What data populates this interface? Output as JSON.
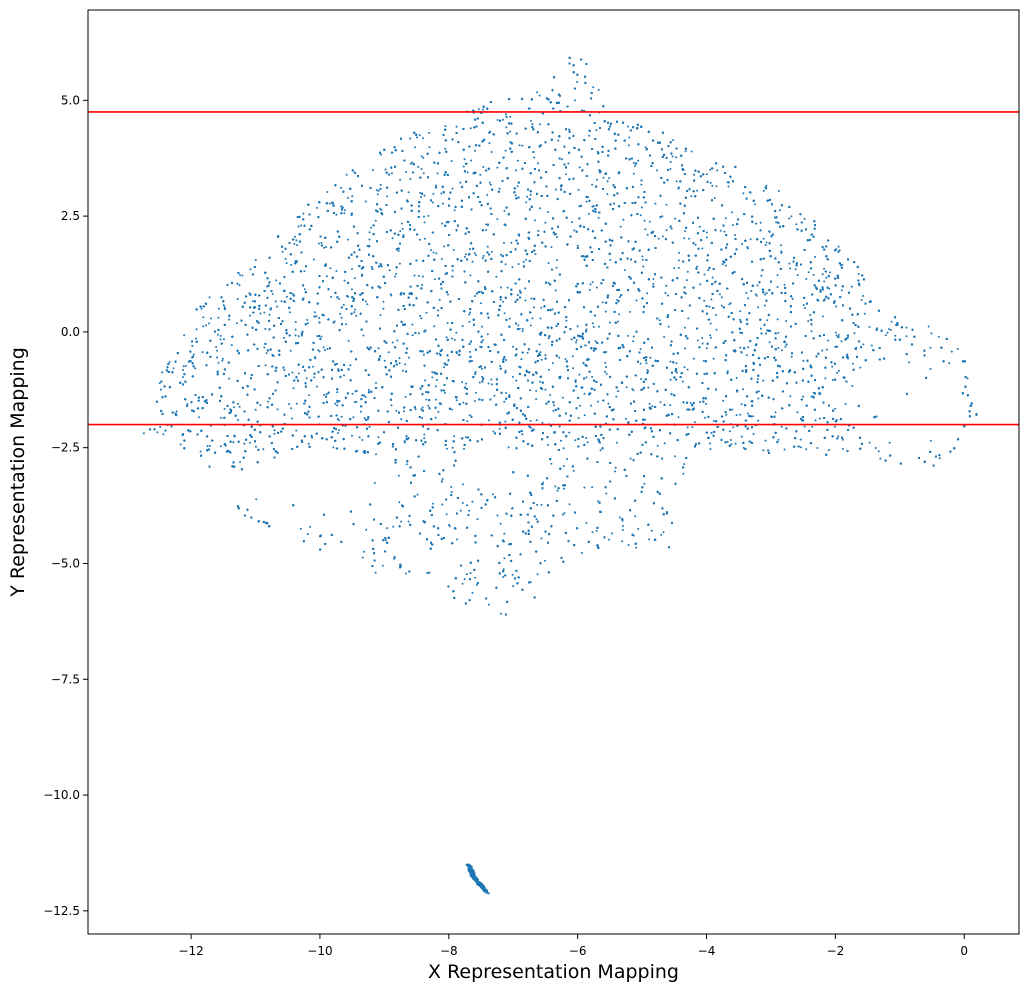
{
  "chart_data": {
    "type": "scatter",
    "title": "",
    "xlabel": "X Representation Mapping",
    "ylabel": "Y Representation Mapping",
    "xlim": [
      -13.6,
      0.85
    ],
    "ylim": [
      -13.0,
      6.95
    ],
    "xticks": [
      -12,
      -10,
      -8,
      -6,
      -4,
      -2,
      0
    ],
    "xtick_labels": [
      "−12",
      "−10",
      "−8",
      "−6",
      "−4",
      "−2",
      "0"
    ],
    "yticks": [
      5.0,
      2.5,
      0.0,
      -2.5,
      -5.0,
      -7.5,
      -10.0,
      -12.5
    ],
    "ytick_labels": [
      "5.0",
      "2.5",
      "0.0",
      "−2.5",
      "−5.0",
      "−7.5",
      "−10.0",
      "−12.5"
    ],
    "grid": false,
    "point_color": "#1f77b4",
    "line_color": "#ff0000",
    "horizontal_lines": [
      4.75,
      -2.0
    ],
    "point_count_approx": 60000,
    "series": [
      {
        "values_description_note": "",
        "outline_main_cloud": [
          [
            -12.9,
            -2.2
          ],
          [
            -12.6,
            -2.0
          ],
          [
            -12.5,
            -1.0
          ],
          [
            -12.2,
            -0.2
          ],
          [
            -11.9,
            0.6
          ],
          [
            -11.5,
            1.0
          ],
          [
            -11.0,
            1.6
          ],
          [
            -10.5,
            2.3
          ],
          [
            -10.0,
            3.0
          ],
          [
            -9.4,
            3.6
          ],
          [
            -8.8,
            4.2
          ],
          [
            -8.0,
            4.7
          ],
          [
            -7.3,
            5.0
          ],
          [
            -6.7,
            5.2
          ],
          [
            -6.3,
            5.6
          ],
          [
            -6.1,
            6.0
          ],
          [
            -5.8,
            5.8
          ],
          [
            -5.6,
            5.2
          ],
          [
            -5.6,
            4.7
          ],
          [
            -4.8,
            4.4
          ],
          [
            -4.0,
            3.9
          ],
          [
            -3.0,
            3.2
          ],
          [
            -2.3,
            2.4
          ],
          [
            -1.7,
            1.5
          ],
          [
            -1.3,
            0.7
          ],
          [
            -1.0,
            0.4
          ],
          [
            -0.5,
            0.1
          ],
          [
            -0.1,
            -0.3
          ],
          [
            0.1,
            -0.9
          ],
          [
            0.2,
            -1.8
          ],
          [
            0.0,
            -2.4
          ],
          [
            -0.4,
            -2.9
          ],
          [
            -1.2,
            -2.9
          ],
          [
            -1.5,
            -2.5
          ],
          [
            -2.5,
            -2.8
          ],
          [
            -3.5,
            -2.5
          ],
          [
            -4.3,
            -2.8
          ],
          [
            -4.5,
            -4.4
          ],
          [
            -4.5,
            -4.9
          ],
          [
            -5.3,
            -4.6
          ],
          [
            -6.0,
            -4.8
          ],
          [
            -6.6,
            -5.4
          ],
          [
            -6.8,
            -6.4
          ],
          [
            -7.3,
            -6.0
          ],
          [
            -8.0,
            -5.8
          ],
          [
            -8.4,
            -5.3
          ],
          [
            -9.2,
            -5.3
          ],
          [
            -9.6,
            -5.1
          ],
          [
            -10.1,
            -4.6
          ],
          [
            -10.6,
            -4.4
          ],
          [
            -11.2,
            -4.0
          ],
          [
            -11.8,
            -3.0
          ],
          [
            -12.2,
            -2.4
          ]
        ],
        "tail_points": [
          [
            -7.7,
            -11.5
          ],
          [
            -7.6,
            -11.8
          ],
          [
            -7.4,
            -12.1
          ]
        ]
      }
    ]
  }
}
